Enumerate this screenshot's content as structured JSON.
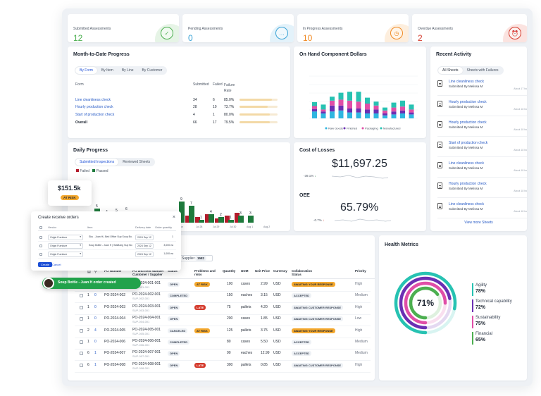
{
  "colors": {
    "accent_blue": "#1c4fd6",
    "submitted_green": "#4caf50",
    "pending_blue": "#3aa3d6",
    "in_progress_orange": "#f08a24",
    "overdue_red": "#d43a2c",
    "bar_green": "#1e7a3c",
    "bar_red": "#b31c2c",
    "purple": "#6b2fb3",
    "pink": "#e04ea7",
    "teal": "#27c2b2",
    "cyan": "#2fb6e0"
  },
  "kpis": [
    {
      "label": "Submitted Assessments",
      "value": "12",
      "icon": "check-icon"
    },
    {
      "label": "Pending Assessments",
      "value": "0",
      "icon": "ellipsis-icon"
    },
    {
      "label": "In Progress Assessments",
      "value": "10",
      "icon": "clock-icon"
    },
    {
      "label": "Overdue Assessments",
      "value": "2",
      "icon": "alarm-icon"
    }
  ],
  "mtd": {
    "title": "Month-to-Date Progress",
    "tabs": [
      "By Form",
      "By Item",
      "By Line",
      "By Customer"
    ],
    "headers": {
      "form": "Form",
      "submitted": "Submitted",
      "failed": "Failed",
      "failure_rate": "Failure Rate"
    },
    "rows": [
      {
        "form": "Line cleanliness check",
        "submitted": "34",
        "failed": "6",
        "rate": "85.0%",
        "fill": 0.85
      },
      {
        "form": "Hourly production check",
        "submitted": "28",
        "failed": "10",
        "rate": "73.7%",
        "fill": 0.737
      },
      {
        "form": "Start of production check",
        "submitted": "4",
        "failed": "1",
        "rate": "80.0%",
        "fill": 0.8
      },
      {
        "form": "Overall",
        "submitted": "66",
        "failed": "17",
        "rate": "79.5%",
        "fill": 0.795
      }
    ]
  },
  "onhand": {
    "title": "On Hand Component Dollars",
    "legend": [
      "Raw Goods",
      "Finished",
      "Packaging",
      "Manufactured"
    ]
  },
  "recent": {
    "title": "Recent Activity",
    "tabs": [
      "All Sheets",
      "Sheets with Failures"
    ],
    "items": [
      {
        "title": "Line cleanliness check",
        "sub": "Submitted By Melissa M",
        "time": "About 17 hours"
      },
      {
        "title": "Hourly production check",
        "sub": "Submitted By Melissa M",
        "time": "About 18 hours"
      },
      {
        "title": "Hourly production check",
        "sub": "Submitted By Melissa M",
        "time": "About 18 hours"
      },
      {
        "title": "Start of production check",
        "sub": "Submitted By Melissa M",
        "time": "About 18 hours"
      },
      {
        "title": "Line cleanliness check",
        "sub": "Submitted By Melissa M",
        "time": "About 18 hours"
      },
      {
        "title": "Hourly production check",
        "sub": "Submitted By Melissa M",
        "time": "About 18 hours"
      },
      {
        "title": "Line cleanliness check",
        "sub": "Submitted By Melissa M",
        "time": "About 18 hours"
      }
    ],
    "view_more": "View more Sheets"
  },
  "daily": {
    "title": "Daily Progress",
    "tabs": [
      "Submitted Inspections",
      "Reviewed Sheets"
    ],
    "legend_failed": "Failed",
    "legend_passed": "Passed",
    "green_labels": [
      "5",
      "4",
      "5",
      "6",
      "9",
      "7",
      "1",
      "4",
      "2",
      "1",
      "3",
      "3"
    ],
    "x_labels": [
      "Jan",
      "Jul 28",
      "Jul 29",
      "Jul 30",
      "Aug 1",
      "Aug 2"
    ]
  },
  "losses": {
    "title": "Cost of Losses",
    "value": "$11,697.25",
    "change": "-39.1%"
  },
  "oee": {
    "title": "OEE",
    "value": "65.79%",
    "change": "-0.7%"
  },
  "health": {
    "title": "Health Metrics",
    "center": "71%",
    "metrics": [
      {
        "name": "Agility",
        "value": "78%",
        "color": "#27c2b2",
        "fill": 0.78
      },
      {
        "name": "Technical capability",
        "value": "72%",
        "color": "#6b2fb3",
        "fill": 0.72
      },
      {
        "name": "Sustainability",
        "value": "75%",
        "color": "#e04ea7",
        "fill": 0.75
      },
      {
        "name": "Financial",
        "value": "65%",
        "color": "#4caf50",
        "fill": 0.65
      }
    ]
  },
  "po_table": {
    "search_value": "Supplier",
    "count_badge": "1582",
    "headers": [
      "PO Number",
      "PO and Item Number Customer / Supplier",
      "Status",
      "Problems and risks",
      "Quantity",
      "UOM",
      "Unit Price",
      "Currency",
      "Collaboration Status",
      "Priority"
    ],
    "rows": [
      {
        "n": "",
        "c": "",
        "po": "PO-2024-001",
        "item": "PO-2024-001-001",
        "sup": "SUP-001-001",
        "status": "OPEN",
        "risk": "AT RISK",
        "qty": "100",
        "uom": "cases",
        "price": "2.99",
        "cur": "USD",
        "collab": "AWAITING YOUR RESPONSE",
        "pri": "High"
      },
      {
        "n": "1",
        "c": "0",
        "po": "PO-2024-002",
        "item": "PO-2024-002-001",
        "sup": "SUP-002-001",
        "status": "COMPLETED",
        "risk": "",
        "qty": "150",
        "uom": "eaches",
        "price": "3.15",
        "cur": "USD",
        "collab": "ACCEPTED",
        "pri": "Medium"
      },
      {
        "n": "1",
        "c": "0",
        "po": "PO-2024-003",
        "item": "PO-2024-003-001",
        "sup": "SUP-003-001",
        "status": "OPEN",
        "risk": "LATE",
        "qty": "75",
        "uom": "pallets",
        "price": "4.20",
        "cur": "USD",
        "collab": "AWAITING CUSTOMER RESPONSE",
        "pri": "High"
      },
      {
        "n": "1",
        "c": "0",
        "po": "PO-2024-004",
        "item": "PO-2024-004-001",
        "sup": "SUP-004-001",
        "status": "OPEN",
        "risk": "",
        "qty": "200",
        "uom": "cases",
        "price": "1.85",
        "cur": "USD",
        "collab": "AWAITING CUSTOMER RESPONSE",
        "pri": "Low"
      },
      {
        "n": "2",
        "c": "4",
        "po": "PO-2024-005",
        "item": "PO-2024-005-001",
        "sup": "SUP-005-001",
        "status": "CANCELED",
        "risk": "AT RISK",
        "qty": "125",
        "uom": "pallets",
        "price": "3.75",
        "cur": "USD",
        "collab": "AWAITING YOUR RESPONSE",
        "pri": "High"
      },
      {
        "n": "1",
        "c": "0",
        "po": "PO-2024-006",
        "item": "PO-2024-006-001",
        "sup": "SUP-006-001",
        "status": "COMPLETED",
        "risk": "",
        "qty": "80",
        "uom": "cases",
        "price": "5.50",
        "cur": "USD",
        "collab": "ACCEPTED",
        "pri": "Medium"
      },
      {
        "n": "6",
        "c": "1",
        "po": "PO-2024-007",
        "item": "PO-2024-007-001",
        "sup": "SUP-007-001",
        "status": "OPEN",
        "risk": "",
        "qty": "90",
        "uom": "eaches",
        "price": "12.99",
        "cur": "USD",
        "collab": "ACCEPTED",
        "pri": "Medium"
      },
      {
        "n": "6",
        "c": "1",
        "po": "PO-2024-008",
        "item": "PO-2024-008-001",
        "sup": "SUP-008-001",
        "status": "OPEN",
        "risk": "LATE",
        "qty": "300",
        "uom": "pallets",
        "price": "0.85",
        "cur": "USD",
        "collab": "AWAITING CUSTOMER RESPONSE",
        "pri": "High"
      }
    ]
  },
  "float_price": {
    "value": "$151.5k",
    "badge": "AT RISK"
  },
  "modal": {
    "title": "Create receive orders",
    "headers": [
      "Vendor",
      "Item",
      "Delivery date",
      "Order quantity"
    ],
    "rows": [
      {
        "vendor": "Origin Furniture",
        "item": "Sku - Juan H | Bed Office Sup Soup Bo...",
        "date": "2024 Sep 12",
        "qty": "1"
      },
      {
        "vendor": "Origin Furniture",
        "item": "Soup Bottle - Juan H | StaMang Sup Bo...",
        "date": "2024 Sep 12",
        "qty": "3,000 ea"
      },
      {
        "vendor": "Origin Furniture",
        "item": "",
        "date": "2024 Sep 12",
        "qty": "1,000 ea"
      }
    ],
    "create_label": "Create",
    "cancel_label": "Cancel"
  },
  "toast": {
    "text": "Soup Bottle - Juan H order created"
  }
}
